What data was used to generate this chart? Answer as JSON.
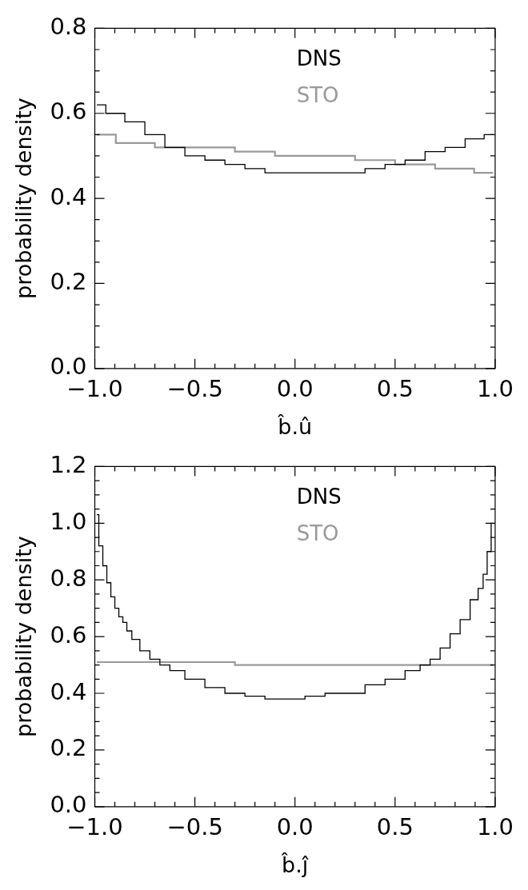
{
  "chart_data": [
    {
      "type": "step",
      "xlabel": "b̂.û",
      "ylabel": "probability density",
      "legend": "top",
      "grid": false,
      "xlim": [
        -1,
        1
      ],
      "ylim": [
        0,
        0.8
      ],
      "xticks": [
        {
          "value": -1,
          "label": "−1.0"
        },
        {
          "value": -0.9,
          "label": null
        },
        {
          "value": -0.8,
          "label": null
        },
        {
          "value": -0.7,
          "label": null
        },
        {
          "value": -0.6,
          "label": null
        },
        {
          "value": -0.5,
          "label": "−0.5"
        },
        {
          "value": -0.4,
          "label": null
        },
        {
          "value": -0.3,
          "label": null
        },
        {
          "value": -0.2,
          "label": null
        },
        {
          "value": -0.1,
          "label": null
        },
        {
          "value": 0,
          "label": "0.0"
        },
        {
          "value": 0.1,
          "label": null
        },
        {
          "value": 0.2,
          "label": null
        },
        {
          "value": 0.3,
          "label": null
        },
        {
          "value": 0.4,
          "label": null
        },
        {
          "value": 0.5,
          "label": "0.5"
        },
        {
          "value": 0.6,
          "label": null
        },
        {
          "value": 0.7,
          "label": null
        },
        {
          "value": 0.8,
          "label": null
        },
        {
          "value": 0.9,
          "label": null
        },
        {
          "value": 1,
          "label": "1.0"
        }
      ],
      "yticks": [
        {
          "value": 0,
          "label": "0.0"
        },
        {
          "value": 0.05,
          "label": null
        },
        {
          "value": 0.1,
          "label": null
        },
        {
          "value": 0.15,
          "label": null
        },
        {
          "value": 0.2,
          "label": "0.2"
        },
        {
          "value": 0.25,
          "label": null
        },
        {
          "value": 0.3,
          "label": null
        },
        {
          "value": 0.35,
          "label": null
        },
        {
          "value": 0.4,
          "label": "0.4"
        },
        {
          "value": 0.45,
          "label": null
        },
        {
          "value": 0.5,
          "label": null
        },
        {
          "value": 0.55,
          "label": null
        },
        {
          "value": 0.6,
          "label": "0.6"
        },
        {
          "value": 0.65,
          "label": null
        },
        {
          "value": 0.7,
          "label": null
        },
        {
          "value": 0.75,
          "label": null
        },
        {
          "value": 0.8,
          "label": "0.8"
        }
      ],
      "series": [
        {
          "name": "DNS",
          "color": "#000000",
          "x": [
            -0.99,
            -0.9,
            -0.8,
            -0.7,
            -0.6,
            -0.5,
            -0.4,
            -0.3,
            -0.2,
            -0.1,
            0,
            0.1,
            0.2,
            0.3,
            0.4,
            0.5,
            0.6,
            0.7,
            0.8,
            0.9,
            0.99
          ],
          "values": [
            0.62,
            0.6,
            0.58,
            0.55,
            0.52,
            0.5,
            0.49,
            0.48,
            0.47,
            0.46,
            0.46,
            0.46,
            0.46,
            0.46,
            0.47,
            0.48,
            0.49,
            0.51,
            0.52,
            0.54,
            0.55
          ]
        },
        {
          "name": "STO",
          "color": "#999999",
          "x": [
            -0.99,
            -0.8,
            -0.6,
            -0.4,
            -0.2,
            0,
            0.2,
            0.4,
            0.6,
            0.8,
            0.99
          ],
          "values": [
            0.55,
            0.53,
            0.52,
            0.52,
            0.51,
            0.5,
            0.5,
            0.49,
            0.48,
            0.47,
            0.46
          ]
        }
      ]
    },
    {
      "type": "step",
      "xlabel": "b̂.ĵ",
      "ylabel": "probability density",
      "legend": "top",
      "grid": false,
      "xlim": [
        -1,
        1
      ],
      "ylim": [
        0,
        1.2
      ],
      "xticks": [
        {
          "value": -1,
          "label": "−1.0"
        },
        {
          "value": -0.9,
          "label": null
        },
        {
          "value": -0.8,
          "label": null
        },
        {
          "value": -0.7,
          "label": null
        },
        {
          "value": -0.6,
          "label": null
        },
        {
          "value": -0.5,
          "label": "−0.5"
        },
        {
          "value": -0.4,
          "label": null
        },
        {
          "value": -0.3,
          "label": null
        },
        {
          "value": -0.2,
          "label": null
        },
        {
          "value": -0.1,
          "label": null
        },
        {
          "value": 0,
          "label": "0.0"
        },
        {
          "value": 0.1,
          "label": null
        },
        {
          "value": 0.2,
          "label": null
        },
        {
          "value": 0.3,
          "label": null
        },
        {
          "value": 0.4,
          "label": null
        },
        {
          "value": 0.5,
          "label": "0.5"
        },
        {
          "value": 0.6,
          "label": null
        },
        {
          "value": 0.7,
          "label": null
        },
        {
          "value": 0.8,
          "label": null
        },
        {
          "value": 0.9,
          "label": null
        },
        {
          "value": 1,
          "label": "1.0"
        }
      ],
      "yticks": [
        {
          "value": 0,
          "label": "0.0"
        },
        {
          "value": 0.05,
          "label": null
        },
        {
          "value": 0.1,
          "label": null
        },
        {
          "value": 0.15,
          "label": null
        },
        {
          "value": 0.2,
          "label": "0.2"
        },
        {
          "value": 0.25,
          "label": null
        },
        {
          "value": 0.3,
          "label": null
        },
        {
          "value": 0.35,
          "label": null
        },
        {
          "value": 0.4,
          "label": "0.4"
        },
        {
          "value": 0.45,
          "label": null
        },
        {
          "value": 0.5,
          "label": null
        },
        {
          "value": 0.55,
          "label": null
        },
        {
          "value": 0.6,
          "label": "0.6"
        },
        {
          "value": 0.65,
          "label": null
        },
        {
          "value": 0.7,
          "label": null
        },
        {
          "value": 0.75,
          "label": null
        },
        {
          "value": 0.8,
          "label": "0.8"
        },
        {
          "value": 0.85,
          "label": null
        },
        {
          "value": 0.9,
          "label": null
        },
        {
          "value": 0.95,
          "label": null
        },
        {
          "value": 1,
          "label": "1.0"
        },
        {
          "value": 1.05,
          "label": null
        },
        {
          "value": 1.1,
          "label": null
        },
        {
          "value": 1.15,
          "label": null
        },
        {
          "value": 1.2,
          "label": "1.2"
        }
      ],
      "series": [
        {
          "name": "DNS",
          "color": "#000000",
          "x": [
            -0.99,
            -0.97,
            -0.95,
            -0.93,
            -0.91,
            -0.89,
            -0.87,
            -0.85,
            -0.83,
            -0.8,
            -0.75,
            -0.7,
            -0.65,
            -0.6,
            -0.5,
            -0.4,
            -0.3,
            -0.2,
            -0.1,
            0,
            0.1,
            0.2,
            0.3,
            0.4,
            0.5,
            0.6,
            0.65,
            0.7,
            0.75,
            0.8,
            0.85,
            0.9,
            0.93,
            0.95,
            0.97,
            0.99
          ],
          "values": [
            1.03,
            0.92,
            0.85,
            0.79,
            0.74,
            0.7,
            0.67,
            0.65,
            0.62,
            0.59,
            0.55,
            0.52,
            0.5,
            0.48,
            0.45,
            0.42,
            0.4,
            0.39,
            0.38,
            0.38,
            0.39,
            0.4,
            0.4,
            0.43,
            0.45,
            0.48,
            0.5,
            0.52,
            0.56,
            0.61,
            0.66,
            0.73,
            0.77,
            0.82,
            0.9,
            1.0
          ]
        },
        {
          "name": "STO",
          "color": "#999999",
          "x": [
            -0.99,
            -0.6,
            0,
            0.6,
            0.99
          ],
          "values": [
            0.51,
            0.51,
            0.5,
            0.5,
            0.5
          ]
        }
      ]
    }
  ]
}
